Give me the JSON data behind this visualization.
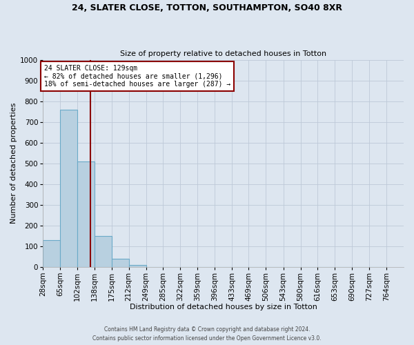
{
  "title1": "24, SLATER CLOSE, TOTTON, SOUTHAMPTON, SO40 8XR",
  "title2": "Size of property relative to detached houses in Totton",
  "xlabel": "Distribution of detached houses by size in Totton",
  "ylabel": "Number of detached properties",
  "footer1": "Contains HM Land Registry data © Crown copyright and database right 2024.",
  "footer2": "Contains public sector information licensed under the Open Government Licence v3.0.",
  "bin_labels": [
    "28sqm",
    "65sqm",
    "102sqm",
    "138sqm",
    "175sqm",
    "212sqm",
    "249sqm",
    "285sqm",
    "322sqm",
    "359sqm",
    "396sqm",
    "433sqm",
    "469sqm",
    "506sqm",
    "543sqm",
    "580sqm",
    "616sqm",
    "653sqm",
    "690sqm",
    "727sqm",
    "764sqm"
  ],
  "bar_values": [
    128,
    760,
    510,
    150,
    40,
    10,
    0,
    0,
    0,
    0,
    0,
    0,
    0,
    0,
    0,
    0,
    0,
    0,
    0,
    0
  ],
  "ylim": [
    0,
    1000
  ],
  "yticks": [
    0,
    100,
    200,
    300,
    400,
    500,
    600,
    700,
    800,
    900,
    1000
  ],
  "bar_color": "#b8d0e0",
  "bar_edgecolor": "#6aaac8",
  "bg_color": "#dde6f0",
  "grid_color": "#bdc9d8",
  "vline_color": "#8b0000",
  "box_text_line1": "24 SLATER CLOSE: 129sqm",
  "box_text_line2": "← 82% of detached houses are smaller (1,296)",
  "box_text_line3": "18% of semi-detached houses are larger (287) →",
  "box_color": "#8b0000",
  "bin_edges": [
    28,
    65,
    102,
    138,
    175,
    212,
    249,
    285,
    322,
    359,
    396,
    433,
    469,
    506,
    543,
    580,
    616,
    653,
    690,
    727,
    764
  ],
  "property_size": 129
}
